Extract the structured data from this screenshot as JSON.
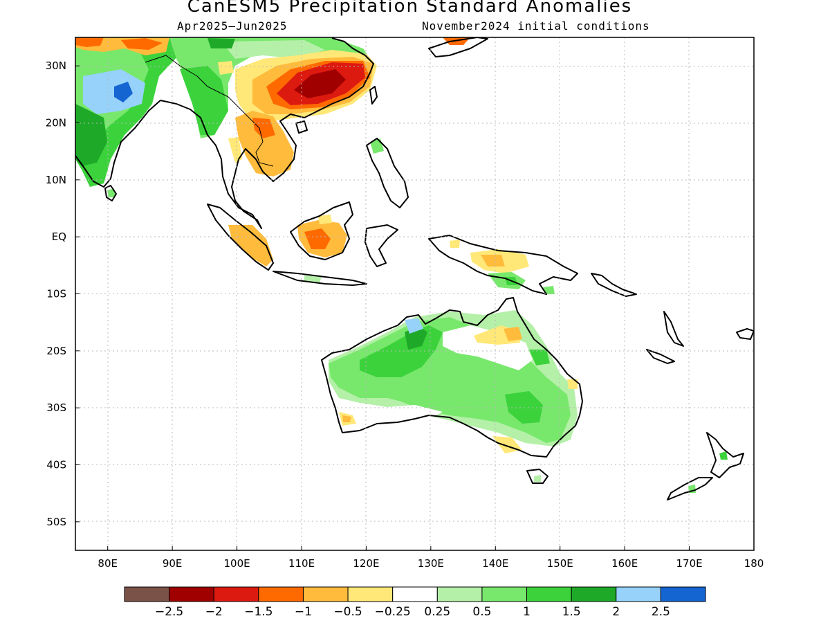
{
  "title": "CanESM5 Precipitation Standard Anomalies",
  "subtitle_left": "Apr2025—Jun2025",
  "subtitle_right": "November2024 initial conditions",
  "map": {
    "lon_range": [
      75,
      180
    ],
    "lat_range": [
      -55,
      35
    ],
    "lat_ticks": [
      {
        "value": 30,
        "label": "30N"
      },
      {
        "value": 20,
        "label": "20N"
      },
      {
        "value": 10,
        "label": "10N"
      },
      {
        "value": 0,
        "label": "EQ"
      },
      {
        "value": -10,
        "label": "10S"
      },
      {
        "value": -20,
        "label": "20S"
      },
      {
        "value": -30,
        "label": "30S"
      },
      {
        "value": -40,
        "label": "40S"
      },
      {
        "value": -50,
        "label": "50S"
      }
    ],
    "lon_ticks": [
      {
        "value": 80,
        "label": "80E"
      },
      {
        "value": 90,
        "label": "90E"
      },
      {
        "value": 100,
        "label": "100E"
      },
      {
        "value": 110,
        "label": "110E"
      },
      {
        "value": 120,
        "label": "120E"
      },
      {
        "value": 130,
        "label": "130E"
      },
      {
        "value": 140,
        "label": "140E"
      },
      {
        "value": 150,
        "label": "150E"
      },
      {
        "value": 160,
        "label": "160E"
      },
      {
        "value": 170,
        "label": "170E"
      },
      {
        "value": 180,
        "label": "180"
      }
    ]
  },
  "colorbar": {
    "colors": [
      "#7a5248",
      "#a00000",
      "#dd1a10",
      "#ff6a00",
      "#ffbb3c",
      "#ffe878",
      "#ffffff",
      "#b4f0a8",
      "#78e86c",
      "#3cd23c",
      "#1eaa28",
      "#96d2fa",
      "#1464d2"
    ],
    "labels": [
      "−2.5",
      "−2",
      "−1.5",
      "−1",
      "−0.5",
      "−0.25",
      "0.25",
      "0.5",
      "1",
      "1.5",
      "2",
      "2.5"
    ]
  }
}
